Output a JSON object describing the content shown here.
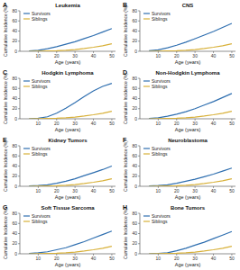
{
  "chart_data": [
    {
      "type": "line",
      "title": "Leukemia",
      "annotations": [
        "A"
      ],
      "x_label": "Age (years)",
      "y_label": "Cumulative Incidence (%)",
      "x": [
        5,
        10,
        15,
        20,
        25,
        30,
        35,
        40,
        45,
        50
      ],
      "xlim": [
        0,
        52
      ],
      "xticks": [
        10,
        20,
        30,
        40,
        50
      ],
      "ylim": [
        0,
        80
      ],
      "yticks": [
        0,
        20,
        40,
        60,
        80
      ],
      "legend": "upper-left",
      "series": [
        {
          "name": "Survivors",
          "color": "#2f6fb0",
          "values": [
            0.5,
            2,
            5,
            9,
            14,
            19,
            25,
            31,
            38,
            45
          ]
        },
        {
          "name": "Siblings",
          "color": "#d8b13a",
          "values": [
            0,
            0.2,
            0.5,
            1,
            2,
            3.5,
            5.5,
            8,
            11,
            15
          ]
        }
      ]
    },
    {
      "type": "line",
      "title": "CNS",
      "annotations": [
        "B"
      ],
      "x_label": "Age (years)",
      "y_label": "Cumulative Incidence (%)",
      "x": [
        5,
        10,
        15,
        20,
        25,
        30,
        35,
        40,
        45,
        50
      ],
      "xlim": [
        0,
        52
      ],
      "xticks": [
        10,
        20,
        30,
        40,
        50
      ],
      "ylim": [
        0,
        80
      ],
      "yticks": [
        0,
        20,
        40,
        60,
        80
      ],
      "legend": "upper-left",
      "series": [
        {
          "name": "Survivors",
          "color": "#2f6fb0",
          "values": [
            1,
            3,
            7,
            12,
            18,
            25,
            32,
            39,
            47,
            55
          ]
        },
        {
          "name": "Siblings",
          "color": "#d8b13a",
          "values": [
            0,
            0.2,
            0.5,
            1,
            2,
            3.5,
            5.5,
            8,
            11,
            15
          ]
        }
      ]
    },
    {
      "type": "line",
      "title": "Hodgkin Lymphoma",
      "annotations": [
        "C"
      ],
      "x_label": "Age (years)",
      "y_label": "Cumulative Incidence (%)",
      "x": [
        5,
        10,
        15,
        20,
        25,
        30,
        35,
        40,
        45,
        50
      ],
      "xlim": [
        0,
        52
      ],
      "xticks": [
        10,
        20,
        30,
        40,
        50
      ],
      "ylim": [
        0,
        80
      ],
      "yticks": [
        0,
        20,
        40,
        60,
        80
      ],
      "legend": "upper-left",
      "series": [
        {
          "name": "Survivors",
          "color": "#2f6fb0",
          "values": [
            0,
            1,
            4,
            11,
            21,
            32,
            44,
            55,
            64,
            70
          ]
        },
        {
          "name": "Siblings",
          "color": "#d8b13a",
          "values": [
            0,
            0.2,
            0.5,
            1,
            2,
            3.5,
            5.5,
            8,
            11,
            15
          ]
        }
      ]
    },
    {
      "type": "line",
      "title": "Non-Hodgkin Lymphoma",
      "annotations": [
        "D"
      ],
      "x_label": "Age (years)",
      "y_label": "Cumulative Incidence (%)",
      "x": [
        5,
        10,
        15,
        20,
        25,
        30,
        35,
        40,
        45,
        50
      ],
      "xlim": [
        0,
        52
      ],
      "xticks": [
        10,
        20,
        30,
        40,
        50
      ],
      "ylim": [
        0,
        80
      ],
      "yticks": [
        0,
        20,
        40,
        60,
        80
      ],
      "legend": "upper-left",
      "series": [
        {
          "name": "Survivors",
          "color": "#2f6fb0",
          "values": [
            0.5,
            2,
            5,
            9,
            14,
            20,
            27,
            34,
            42,
            50
          ]
        },
        {
          "name": "Siblings",
          "color": "#d8b13a",
          "values": [
            0,
            0.2,
            0.5,
            1,
            2,
            3.5,
            5.5,
            8,
            11,
            15
          ]
        }
      ]
    },
    {
      "type": "line",
      "title": "Kidney Tumors",
      "annotations": [
        "E"
      ],
      "x_label": "Age (years)",
      "y_label": "Cumulative Incidence (%)",
      "x": [
        5,
        10,
        15,
        20,
        25,
        30,
        35,
        40,
        45,
        50
      ],
      "xlim": [
        0,
        52
      ],
      "xticks": [
        10,
        20,
        30,
        40,
        50
      ],
      "ylim": [
        0,
        80
      ],
      "yticks": [
        0,
        20,
        40,
        60,
        80
      ],
      "legend": "upper-left",
      "series": [
        {
          "name": "Survivors",
          "color": "#2f6fb0",
          "values": [
            0.5,
            1.5,
            3,
            6,
            10,
            15,
            21,
            27,
            33,
            40
          ]
        },
        {
          "name": "Siblings",
          "color": "#d8b13a",
          "values": [
            0,
            0.2,
            0.5,
            1,
            2,
            3.5,
            5.5,
            8,
            11,
            15
          ]
        }
      ]
    },
    {
      "type": "line",
      "title": "Neuroblastoma",
      "annotations": [
        "F"
      ],
      "x_label": "Age (years)",
      "y_label": "Cumulative Incidence (%)",
      "x": [
        5,
        10,
        15,
        20,
        25,
        30,
        35,
        40,
        45,
        50
      ],
      "xlim": [
        0,
        52
      ],
      "xticks": [
        10,
        20,
        30,
        40,
        50
      ],
      "ylim": [
        0,
        80
      ],
      "yticks": [
        0,
        20,
        40,
        60,
        80
      ],
      "legend": "upper-left",
      "series": [
        {
          "name": "Survivors",
          "color": "#2f6fb0",
          "values": [
            0.5,
            1.5,
            3,
            6,
            10,
            14,
            19,
            24,
            30,
            36
          ]
        },
        {
          "name": "Siblings",
          "color": "#d8b13a",
          "values": [
            0,
            0.2,
            0.5,
            1,
            2,
            3.5,
            5.5,
            8,
            11,
            15
          ]
        }
      ]
    },
    {
      "type": "line",
      "title": "Soft Tissue Sarcoma",
      "annotations": [
        "G"
      ],
      "x_label": "Age (years)",
      "y_label": "Cumulative Incidence (%)",
      "x": [
        5,
        10,
        15,
        20,
        25,
        30,
        35,
        40,
        45,
        50
      ],
      "xlim": [
        0,
        52
      ],
      "xticks": [
        10,
        20,
        30,
        40,
        50
      ],
      "ylim": [
        0,
        80
      ],
      "yticks": [
        0,
        20,
        40,
        60,
        80
      ],
      "legend": "upper-left",
      "series": [
        {
          "name": "Survivors",
          "color": "#2f6fb0",
          "values": [
            0.5,
            2,
            4,
            8,
            12,
            18,
            24,
            31,
            38,
            45
          ]
        },
        {
          "name": "Siblings",
          "color": "#d8b13a",
          "values": [
            0,
            0.2,
            0.5,
            1,
            2,
            3.5,
            5.5,
            8,
            11,
            15
          ]
        }
      ]
    },
    {
      "type": "line",
      "title": "Bone Tumors",
      "annotations": [
        "H"
      ],
      "x_label": "Age (years)",
      "y_label": "Cumulative Incidence (%)",
      "x": [
        5,
        10,
        15,
        20,
        25,
        30,
        35,
        40,
        45,
        50
      ],
      "xlim": [
        0,
        52
      ],
      "xticks": [
        10,
        20,
        30,
        40,
        50
      ],
      "ylim": [
        0,
        80
      ],
      "yticks": [
        0,
        20,
        40,
        60,
        80
      ],
      "legend": "upper-left",
      "series": [
        {
          "name": "Survivors",
          "color": "#2f6fb0",
          "values": [
            0,
            0.5,
            2,
            6,
            11,
            17,
            23,
            30,
            37,
            44
          ]
        },
        {
          "name": "Siblings",
          "color": "#d8b13a",
          "values": [
            0,
            0.2,
            0.5,
            1,
            2,
            3.5,
            5.5,
            8,
            11,
            15
          ]
        }
      ]
    }
  ]
}
